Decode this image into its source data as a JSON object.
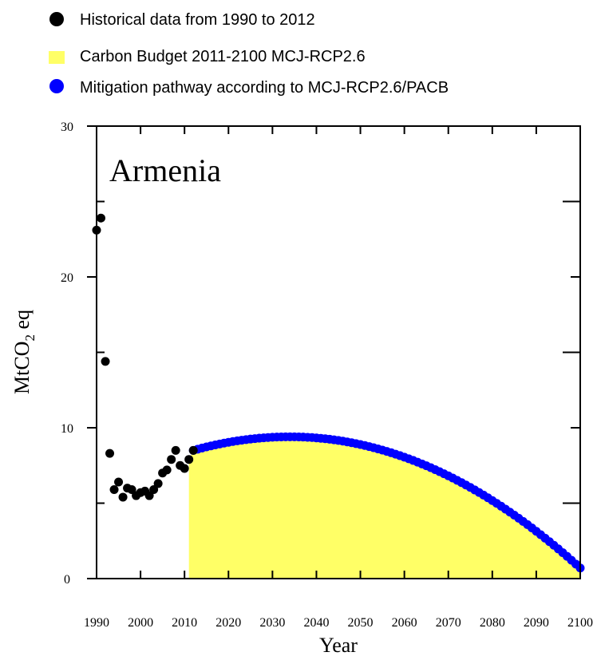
{
  "chart_data": {
    "type": "scatter",
    "country_label": "Armenia",
    "xlabel": "Year",
    "ylabel": {
      "prefix": "MtCO",
      "subscript": "2",
      "suffix": " eq"
    },
    "xlim": [
      1990,
      2100
    ],
    "ylim": [
      0,
      30
    ],
    "x_ticks": [
      1990,
      2000,
      2010,
      2020,
      2030,
      2040,
      2050,
      2060,
      2070,
      2080,
      2090,
      2100
    ],
    "y_ticks": [
      0,
      10,
      20,
      30
    ],
    "grid": false,
    "legend_placement": "top",
    "colors": {
      "historical": "#000000",
      "budget": "#ffff66",
      "pathway": "#0000ff"
    },
    "legend": [
      {
        "key": "historical",
        "marker": "circle",
        "label": "Historical data from 1990 to 2012"
      },
      {
        "key": "budget",
        "marker": "square",
        "label": "Carbon Budget 2011-2100 MCJ-RCP2.6"
      },
      {
        "key": "pathway",
        "marker": "circle",
        "label": "Mitigation pathway according to MCJ-RCP2.6/PACB"
      }
    ],
    "historical": {
      "x": [
        1990,
        1991,
        1992,
        1993,
        1994,
        1995,
        1996,
        1997,
        1998,
        1999,
        2000,
        2001,
        2002,
        2003,
        2004,
        2005,
        2006,
        2007,
        2008,
        2009,
        2010,
        2011,
        2012
      ],
      "y": [
        23.1,
        23.9,
        14.4,
        8.3,
        5.9,
        6.4,
        5.4,
        6.0,
        5.9,
        5.5,
        5.7,
        5.8,
        5.5,
        5.9,
        6.3,
        7.0,
        7.2,
        7.9,
        8.5,
        7.5,
        7.3,
        7.9,
        8.5
      ]
    },
    "budget_area": {
      "x_start": 2011,
      "x_end": 2100
    },
    "pathway": {
      "x_start": 2012,
      "x_end": 2100,
      "step": 1,
      "y_start": 8.5,
      "peak_year": 2034,
      "peak_value": 9.4,
      "y_end": 0.7
    }
  }
}
